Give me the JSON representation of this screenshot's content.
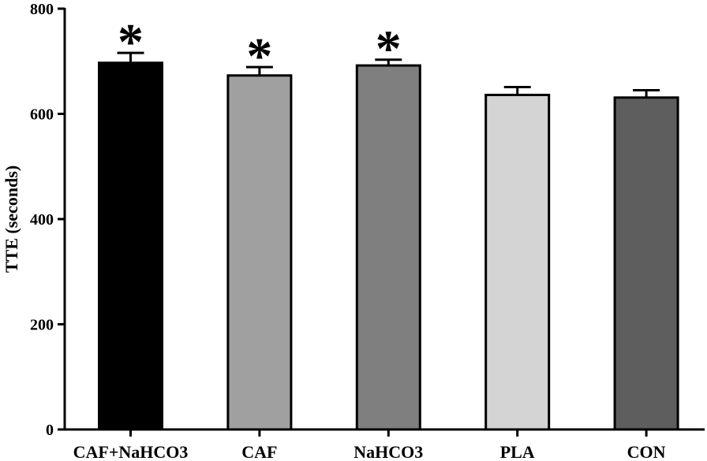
{
  "chart_data": {
    "type": "bar",
    "title": "",
    "xlabel": "",
    "ylabel": "TTE (seconds)",
    "ylim": [
      0,
      800
    ],
    "yticks": [
      0,
      200,
      400,
      600,
      800
    ],
    "grid": false,
    "categories": [
      "CAF+NaHCO3",
      "CAF",
      "NaHCO3",
      "PLA",
      "CON"
    ],
    "values": [
      697,
      673,
      692,
      636,
      631
    ],
    "errors": [
      19,
      16,
      11,
      15,
      14
    ],
    "colors": [
      "#000000",
      "#a0a0a0",
      "#7f7f7f",
      "#d4d4d4",
      "#5e5e5e"
    ],
    "significance": [
      "*",
      "*",
      "*",
      "",
      ""
    ]
  }
}
